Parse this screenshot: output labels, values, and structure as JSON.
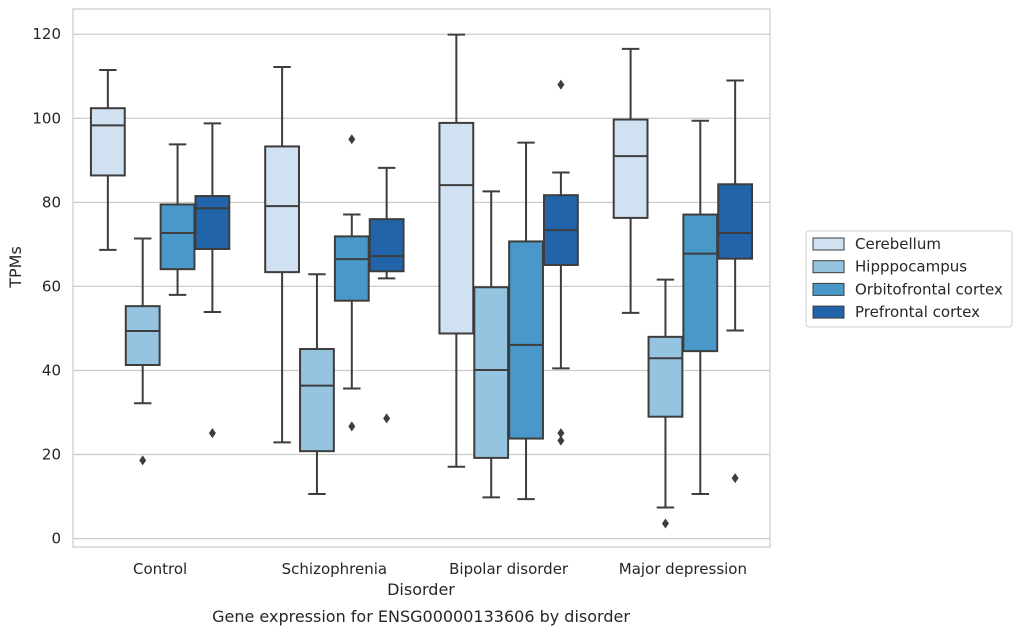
{
  "chart_data": {
    "type": "box",
    "caption": "Gene expression for ENSG00000133606 by disorder",
    "xlabel": "Disorder",
    "ylabel": "TPMs",
    "ylim": [
      -2,
      126
    ],
    "yticks": [
      0,
      20,
      40,
      60,
      80,
      100,
      120
    ],
    "grid": "horizontal",
    "legend_position": "right",
    "categories": [
      "Control",
      "Schizophrenia",
      "Bipolar disorder",
      "Major depression"
    ],
    "series": [
      {
        "name": "Cerebellum",
        "color": "#d0e1f2",
        "boxes": [
          {
            "whisker_low": 68.7,
            "q1": 86.4,
            "median": 98.3,
            "q3": 102.4,
            "whisker_high": 111.5,
            "outliers": []
          },
          {
            "whisker_low": 22.9,
            "q1": 63.4,
            "median": 79.1,
            "q3": 93.3,
            "whisker_high": 112.2,
            "outliers": []
          },
          {
            "whisker_low": 17.1,
            "q1": 48.8,
            "median": 84.1,
            "q3": 98.9,
            "whisker_high": 119.9,
            "outliers": []
          },
          {
            "whisker_low": 53.7,
            "q1": 76.3,
            "median": 91.0,
            "q3": 99.7,
            "whisker_high": 116.5,
            "outliers": []
          }
        ]
      },
      {
        "name": "Hipppocampus",
        "color": "#94c4df",
        "boxes": [
          {
            "whisker_low": 32.2,
            "q1": 41.3,
            "median": 49.4,
            "q3": 55.3,
            "whisker_high": 71.4,
            "outliers": [
              18.6
            ]
          },
          {
            "whisker_low": 10.6,
            "q1": 20.8,
            "median": 36.4,
            "q3": 45.1,
            "whisker_high": 62.9,
            "outliers": []
          },
          {
            "whisker_low": 9.8,
            "q1": 19.2,
            "median": 40.1,
            "q3": 59.8,
            "whisker_high": 82.6,
            "outliers": []
          },
          {
            "whisker_low": 7.4,
            "q1": 29.0,
            "median": 42.9,
            "q3": 48.0,
            "whisker_high": 61.6,
            "outliers": [
              3.6
            ]
          }
        ]
      },
      {
        "name": "Orbitofrontal cortex",
        "color": "#4a98c9",
        "boxes": [
          {
            "whisker_low": 58.0,
            "q1": 64.1,
            "median": 72.7,
            "q3": 79.5,
            "whisker_high": 93.8,
            "outliers": []
          },
          {
            "whisker_low": 35.7,
            "q1": 56.6,
            "median": 66.5,
            "q3": 71.9,
            "whisker_high": 77.1,
            "outliers": [
              95.0,
              26.7
            ]
          },
          {
            "whisker_low": 9.4,
            "q1": 23.8,
            "median": 46.1,
            "q3": 70.7,
            "whisker_high": 94.2,
            "outliers": []
          },
          {
            "whisker_low": 10.6,
            "q1": 44.6,
            "median": 67.8,
            "q3": 77.1,
            "whisker_high": 99.4,
            "outliers": []
          }
        ]
      },
      {
        "name": "Prefrontal cortex",
        "color": "#2264a9",
        "boxes": [
          {
            "whisker_low": 53.9,
            "q1": 68.9,
            "median": 78.6,
            "q3": 81.5,
            "whisker_high": 98.8,
            "outliers": [
              25.1
            ]
          },
          {
            "whisker_low": 61.9,
            "q1": 63.6,
            "median": 67.2,
            "q3": 76.0,
            "whisker_high": 88.2,
            "outliers": [
              28.6
            ]
          },
          {
            "whisker_low": 40.5,
            "q1": 65.1,
            "median": 73.4,
            "q3": 81.7,
            "whisker_high": 87.1,
            "outliers": [
              108.0,
              25.1,
              23.3
            ]
          },
          {
            "whisker_low": 49.5,
            "q1": 66.6,
            "median": 72.7,
            "q3": 84.3,
            "whisker_high": 109.0,
            "outliers": [
              14.4
            ]
          }
        ]
      }
    ]
  }
}
